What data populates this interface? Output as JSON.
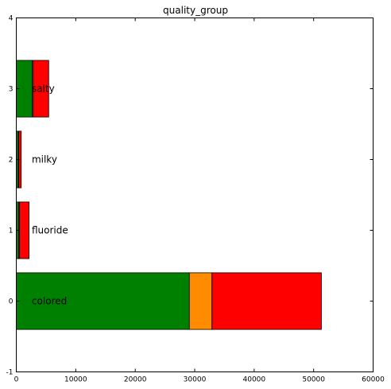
{
  "chart_data": {
    "type": "bar",
    "orientation": "horizontal",
    "stacked": true,
    "title": "quality_group",
    "xlabel": "",
    "ylabel": "",
    "xlim": [
      0,
      60000
    ],
    "ylim": [
      -1,
      4
    ],
    "x_ticks": [
      0,
      10000,
      20000,
      30000,
      40000,
      50000,
      60000
    ],
    "y_ticks": [
      -1,
      0,
      1,
      2,
      3,
      4
    ],
    "grid": false,
    "legend": "none",
    "categories": [
      "colored",
      "fluoride",
      "milky",
      "salty"
    ],
    "series": [
      {
        "color": "#008000",
        "values": [
          29100,
          400,
          350,
          2700
        ]
      },
      {
        "color": "#ff8c00",
        "values": [
          3800,
          150,
          60,
          150
        ]
      },
      {
        "color": "#ff0000",
        "values": [
          18400,
          1600,
          420,
          2600
        ]
      }
    ]
  }
}
